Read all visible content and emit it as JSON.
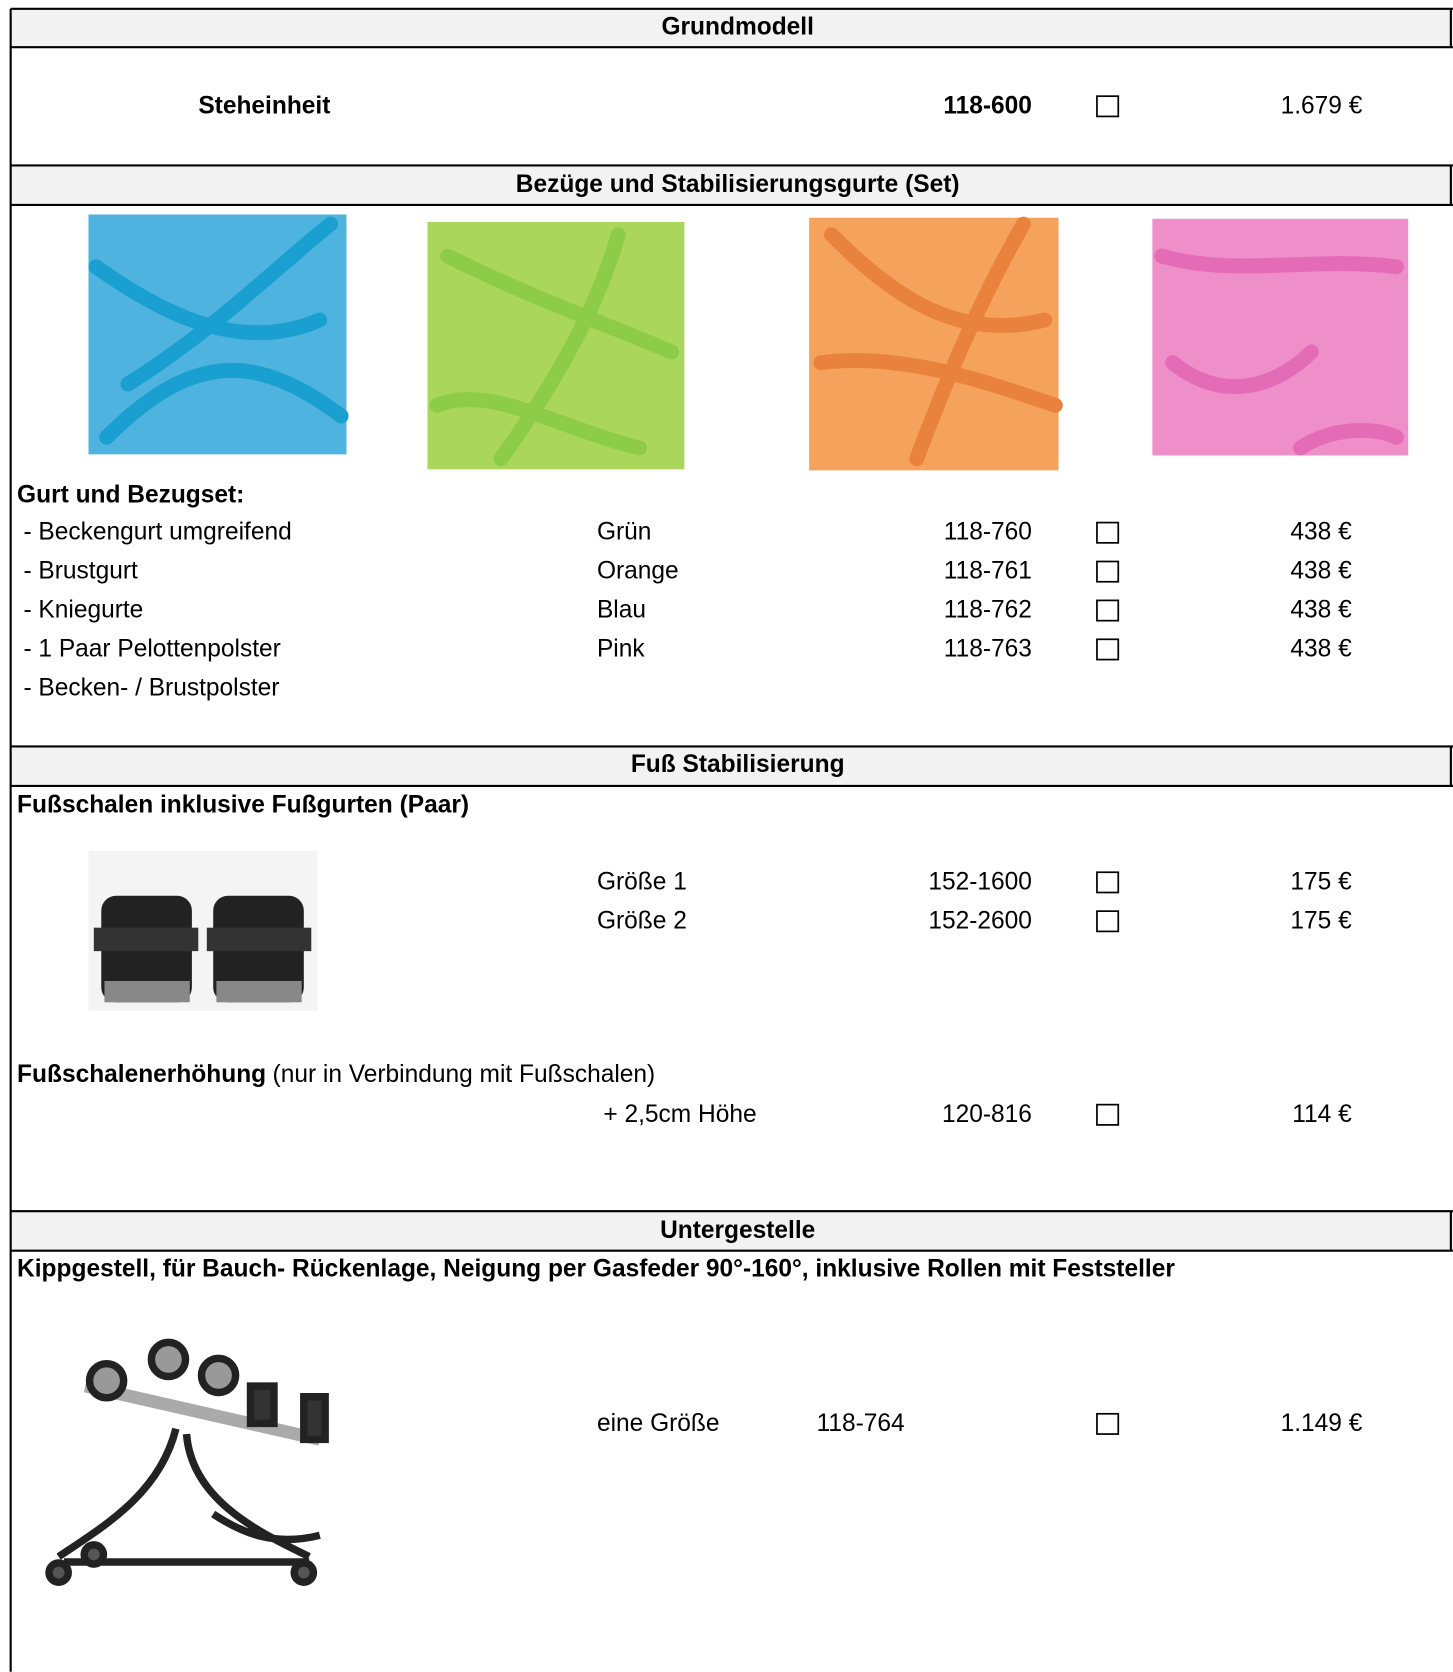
{
  "sections": [
    {
      "title": "Grundmodell",
      "rows": [
        {
          "name": "Steheinheit",
          "article": "118-600",
          "price": "1.679 €"
        }
      ]
    },
    {
      "title": "Bezüge und Stabilisierungsgurte (Set)",
      "heading": "Gurt und Bezugset:",
      "items": [
        "- Beckengurt umgreifend",
        "- Brustgurt",
        "- Kniegurte",
        "- 1 Paar Pelottenpolster",
        "- Becken- / Brustpolster"
      ],
      "rows": [
        {
          "variant": "Grün",
          "article": "118-760",
          "price": "438 €"
        },
        {
          "variant": "Orange",
          "article": "118-761",
          "price": "438 €"
        },
        {
          "variant": "Blau",
          "article": "118-762",
          "price": "438 €"
        },
        {
          "variant": "Pink",
          "article": "118-763",
          "price": "438 €"
        }
      ]
    },
    {
      "title": "Fuß Stabilisierung",
      "heading": "Fußschalen inklusive Fußgurten (Paar)",
      "rows": [
        {
          "variant": "Größe 1",
          "article": "152-1600",
          "price": "175 €"
        },
        {
          "variant": "Größe 2",
          "article": "152-2600",
          "price": "175 €"
        }
      ],
      "sub_heading": "Fußschalenerhöhung",
      "sub_note": "(nur in Verbindung mit Fußschalen)",
      "sub_rows": [
        {
          "variant": "+ 2,5cm Höhe",
          "article": "120-816",
          "price": "114 €"
        }
      ]
    },
    {
      "title": "Untergestelle",
      "heading": "Kippgestell, für Bauch- Rückenlage, Neigung per Gasfeder 90°-160°, inklusive Rollen mit Feststeller",
      "rows": [
        {
          "variant": "eine Größe",
          "article": "118-764",
          "price": "1.149 €"
        }
      ]
    }
  ]
}
